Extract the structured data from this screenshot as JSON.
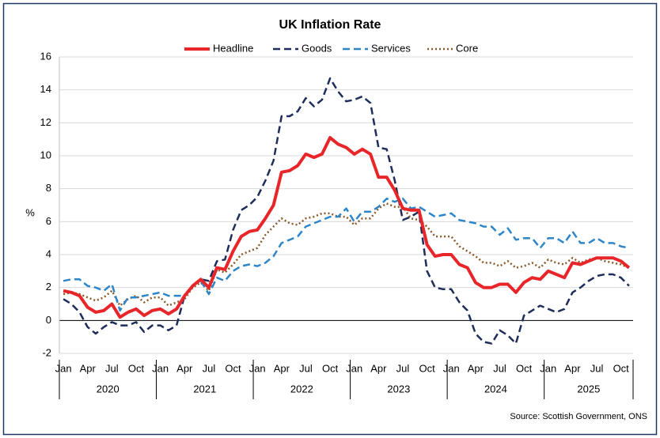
{
  "chart_data": {
    "type": "line",
    "title": "UK Inflation Rate",
    "y_label": "%",
    "source": "Source: Scottish Government, ONS",
    "categories": [
      "Jan",
      null,
      null,
      "Apr",
      null,
      null,
      "Jul",
      null,
      null,
      "Oct",
      null,
      null,
      "Jan",
      null,
      null,
      "Apr",
      null,
      null,
      "Jul",
      null,
      null,
      "Oct",
      null,
      null,
      "Jan",
      null,
      null,
      "Apr",
      null,
      null,
      "Jul",
      null,
      null,
      "Oct",
      null,
      null,
      "Jan",
      null,
      null,
      "Apr",
      null,
      null,
      "Jul",
      null,
      null,
      "Oct",
      null,
      null,
      "Jan",
      null,
      null,
      "Apr",
      null,
      null,
      "Jul",
      null,
      null,
      "Oct",
      null,
      null,
      "Jan",
      null,
      null,
      "Apr",
      null,
      null,
      "Jul",
      null,
      null,
      "Oct",
      null
    ],
    "year_groups": [
      "2020",
      "2021",
      "2022",
      "2023",
      "2024",
      "2025"
    ],
    "ylim": [
      -2,
      16
    ],
    "yticks": [
      -2,
      0,
      2,
      4,
      6,
      8,
      10,
      12,
      14,
      16
    ],
    "grid": true,
    "series": [
      {
        "name": "Headline",
        "color": "#e8262a",
        "line_style": "solid",
        "values": [
          1.8,
          1.7,
          1.5,
          0.8,
          0.5,
          0.6,
          1.0,
          0.2,
          0.5,
          0.7,
          0.3,
          0.6,
          0.7,
          0.4,
          0.7,
          1.5,
          2.1,
          2.5,
          2.0,
          3.2,
          3.1,
          4.2,
          5.1,
          5.4,
          5.5,
          6.2,
          7.0,
          9.0,
          9.1,
          9.4,
          10.1,
          9.9,
          10.1,
          11.1,
          10.7,
          10.5,
          10.1,
          10.4,
          10.1,
          8.7,
          8.7,
          7.9,
          6.8,
          6.7,
          6.7,
          4.6,
          3.9,
          4.0,
          4.0,
          3.4,
          3.2,
          2.3,
          2.0,
          2.0,
          2.2,
          2.2,
          1.7,
          2.3,
          2.6,
          2.5,
          3.0,
          2.8,
          2.6,
          3.5,
          3.4,
          3.6,
          3.8,
          3.8,
          3.8,
          3.6,
          3.2
        ]
      },
      {
        "name": "Goods",
        "color": "#1f2d5a",
        "line_style": "dashed",
        "values": [
          1.3,
          1.0,
          0.5,
          -0.4,
          -0.8,
          -0.4,
          -0.1,
          -0.3,
          -0.3,
          -0.1,
          -0.7,
          -0.3,
          -0.3,
          -0.6,
          -0.3,
          1.5,
          2.1,
          2.5,
          2.4,
          3.6,
          3.7,
          5.5,
          6.7,
          7.0,
          7.5,
          8.5,
          9.7,
          12.4,
          12.4,
          12.7,
          13.5,
          13.0,
          13.4,
          14.7,
          13.9,
          13.3,
          13.4,
          13.6,
          13.2,
          10.5,
          10.4,
          8.5,
          6.1,
          6.3,
          6.6,
          3.0,
          2.0,
          1.9,
          1.9,
          1.1,
          0.6,
          -0.8,
          -1.3,
          -1.4,
          -0.6,
          -0.9,
          -1.4,
          0.3,
          0.6,
          0.9,
          0.7,
          0.5,
          0.7,
          1.7,
          2.0,
          2.4,
          2.7,
          2.8,
          2.8,
          2.6,
          2.1
        ]
      },
      {
        "name": "Services",
        "color": "#2e86c8",
        "line_style": "dashed",
        "values": [
          2.4,
          2.5,
          2.5,
          2.1,
          2.0,
          1.8,
          2.2,
          0.6,
          1.4,
          1.4,
          1.5,
          1.6,
          1.7,
          1.5,
          1.5,
          1.5,
          2.1,
          2.4,
          1.6,
          2.6,
          2.4,
          3.0,
          3.3,
          3.4,
          3.3,
          3.5,
          3.9,
          4.7,
          4.9,
          5.1,
          5.7,
          5.9,
          6.1,
          6.3,
          6.3,
          6.8,
          6.0,
          6.6,
          6.6,
          6.9,
          7.4,
          7.2,
          7.4,
          6.8,
          6.9,
          6.6,
          6.3,
          6.4,
          6.5,
          6.1,
          6.0,
          5.9,
          5.7,
          5.7,
          5.2,
          5.6,
          4.9,
          5.0,
          5.0,
          4.4,
          5.0,
          5.0,
          4.7,
          5.4,
          4.7,
          4.7,
          5.0,
          4.7,
          4.7,
          4.5,
          4.4
        ]
      },
      {
        "name": "Core",
        "color": "#8b5a2b",
        "line_style": "dotted",
        "values": [
          1.6,
          1.7,
          1.6,
          1.4,
          1.2,
          1.4,
          1.8,
          0.9,
          1.3,
          1.5,
          1.1,
          1.4,
          1.4,
          0.9,
          1.1,
          1.3,
          2.0,
          2.3,
          1.8,
          3.1,
          2.9,
          3.4,
          4.0,
          4.2,
          4.4,
          5.2,
          5.7,
          6.2,
          5.9,
          5.8,
          6.2,
          6.3,
          6.5,
          6.5,
          6.3,
          6.3,
          5.8,
          6.2,
          6.2,
          6.8,
          7.1,
          6.9,
          6.9,
          6.2,
          6.1,
          5.7,
          5.1,
          5.1,
          5.1,
          4.5,
          4.2,
          3.9,
          3.5,
          3.5,
          3.3,
          3.6,
          3.2,
          3.3,
          3.5,
          3.2,
          3.7,
          3.5,
          3.4,
          3.8,
          3.5,
          3.7,
          3.8,
          3.6,
          3.5,
          3.4,
          3.2
        ]
      }
    ]
  }
}
